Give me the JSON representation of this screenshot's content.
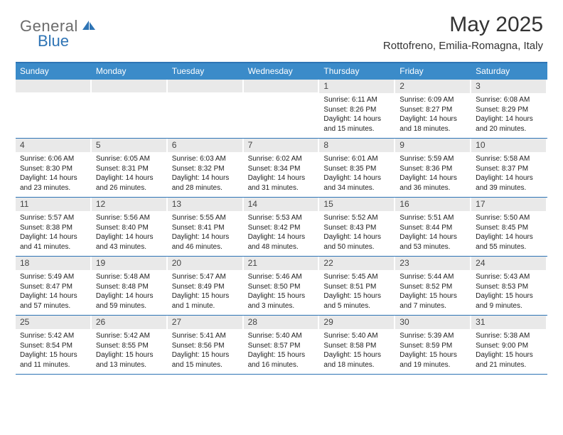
{
  "brand": {
    "general": "General",
    "blue": "Blue"
  },
  "title": {
    "month": "May 2025",
    "location": "Rottofreno, Emilia-Romagna, Italy"
  },
  "colors": {
    "accent": "#2e74b5",
    "header_bg": "#3b8bc9",
    "daynum_bg": "#e9e9e9",
    "text": "#333333"
  },
  "day_headers": [
    "Sunday",
    "Monday",
    "Tuesday",
    "Wednesday",
    "Thursday",
    "Friday",
    "Saturday"
  ],
  "layout": {
    "cols": 7,
    "rows": 5,
    "leading_blanks": 4
  },
  "days": [
    {
      "n": "1",
      "sr": "6:11 AM",
      "ss": "8:26 PM",
      "dl": "14 hours and 15 minutes."
    },
    {
      "n": "2",
      "sr": "6:09 AM",
      "ss": "8:27 PM",
      "dl": "14 hours and 18 minutes."
    },
    {
      "n": "3",
      "sr": "6:08 AM",
      "ss": "8:29 PM",
      "dl": "14 hours and 20 minutes."
    },
    {
      "n": "4",
      "sr": "6:06 AM",
      "ss": "8:30 PM",
      "dl": "14 hours and 23 minutes."
    },
    {
      "n": "5",
      "sr": "6:05 AM",
      "ss": "8:31 PM",
      "dl": "14 hours and 26 minutes."
    },
    {
      "n": "6",
      "sr": "6:03 AM",
      "ss": "8:32 PM",
      "dl": "14 hours and 28 minutes."
    },
    {
      "n": "7",
      "sr": "6:02 AM",
      "ss": "8:34 PM",
      "dl": "14 hours and 31 minutes."
    },
    {
      "n": "8",
      "sr": "6:01 AM",
      "ss": "8:35 PM",
      "dl": "14 hours and 34 minutes."
    },
    {
      "n": "9",
      "sr": "5:59 AM",
      "ss": "8:36 PM",
      "dl": "14 hours and 36 minutes."
    },
    {
      "n": "10",
      "sr": "5:58 AM",
      "ss": "8:37 PM",
      "dl": "14 hours and 39 minutes."
    },
    {
      "n": "11",
      "sr": "5:57 AM",
      "ss": "8:38 PM",
      "dl": "14 hours and 41 minutes."
    },
    {
      "n": "12",
      "sr": "5:56 AM",
      "ss": "8:40 PM",
      "dl": "14 hours and 43 minutes."
    },
    {
      "n": "13",
      "sr": "5:55 AM",
      "ss": "8:41 PM",
      "dl": "14 hours and 46 minutes."
    },
    {
      "n": "14",
      "sr": "5:53 AM",
      "ss": "8:42 PM",
      "dl": "14 hours and 48 minutes."
    },
    {
      "n": "15",
      "sr": "5:52 AM",
      "ss": "8:43 PM",
      "dl": "14 hours and 50 minutes."
    },
    {
      "n": "16",
      "sr": "5:51 AM",
      "ss": "8:44 PM",
      "dl": "14 hours and 53 minutes."
    },
    {
      "n": "17",
      "sr": "5:50 AM",
      "ss": "8:45 PM",
      "dl": "14 hours and 55 minutes."
    },
    {
      "n": "18",
      "sr": "5:49 AM",
      "ss": "8:47 PM",
      "dl": "14 hours and 57 minutes."
    },
    {
      "n": "19",
      "sr": "5:48 AM",
      "ss": "8:48 PM",
      "dl": "14 hours and 59 minutes."
    },
    {
      "n": "20",
      "sr": "5:47 AM",
      "ss": "8:49 PM",
      "dl": "15 hours and 1 minute."
    },
    {
      "n": "21",
      "sr": "5:46 AM",
      "ss": "8:50 PM",
      "dl": "15 hours and 3 minutes."
    },
    {
      "n": "22",
      "sr": "5:45 AM",
      "ss": "8:51 PM",
      "dl": "15 hours and 5 minutes."
    },
    {
      "n": "23",
      "sr": "5:44 AM",
      "ss": "8:52 PM",
      "dl": "15 hours and 7 minutes."
    },
    {
      "n": "24",
      "sr": "5:43 AM",
      "ss": "8:53 PM",
      "dl": "15 hours and 9 minutes."
    },
    {
      "n": "25",
      "sr": "5:42 AM",
      "ss": "8:54 PM",
      "dl": "15 hours and 11 minutes."
    },
    {
      "n": "26",
      "sr": "5:42 AM",
      "ss": "8:55 PM",
      "dl": "15 hours and 13 minutes."
    },
    {
      "n": "27",
      "sr": "5:41 AM",
      "ss": "8:56 PM",
      "dl": "15 hours and 15 minutes."
    },
    {
      "n": "28",
      "sr": "5:40 AM",
      "ss": "8:57 PM",
      "dl": "15 hours and 16 minutes."
    },
    {
      "n": "29",
      "sr": "5:40 AM",
      "ss": "8:58 PM",
      "dl": "15 hours and 18 minutes."
    },
    {
      "n": "30",
      "sr": "5:39 AM",
      "ss": "8:59 PM",
      "dl": "15 hours and 19 minutes."
    },
    {
      "n": "31",
      "sr": "5:38 AM",
      "ss": "9:00 PM",
      "dl": "15 hours and 21 minutes."
    }
  ],
  "labels": {
    "sunrise": "Sunrise:",
    "sunset": "Sunset:",
    "daylight": "Daylight:"
  }
}
